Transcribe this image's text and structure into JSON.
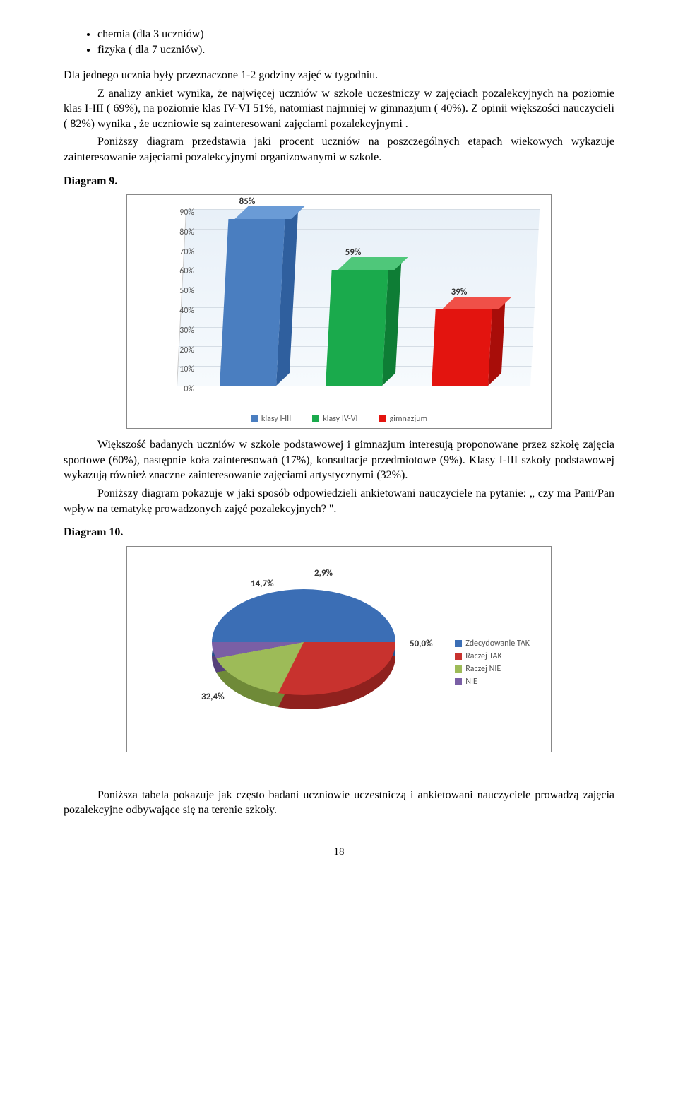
{
  "bullets": {
    "item1": "chemia (dla 3 uczniów)",
    "item2": "fizyka ( dla 7 uczniów)."
  },
  "para1": "Dla jednego ucznia były przeznaczone 1-2 godziny zajęć w tygodniu.",
  "para2": "Z analizy ankiet wynika, że najwięcej uczniów w szkole uczestniczy w zajęciach pozalekcyjnych na poziomie klas I-III ( 69%), na poziomie klas IV-VI  51%, natomiast najmniej w gimnazjum ( 40%). Z opinii większości nauczycieli ( 82%) wynika , że uczniowie są zainteresowani zajęciami pozalekcyjnymi .",
  "para3": "Poniższy diagram przedstawia jaki procent uczniów na poszczególnych etapach wiekowych wykazuje zainteresowanie zajęciami pozalekcyjnymi organizowanymi w szkole.",
  "diagram9_title": "Diagram 9.",
  "bar_chart": {
    "ylim_max": 90,
    "ytick_step": 10,
    "yticks": [
      "90%",
      "80%",
      "70%",
      "60%",
      "50%",
      "40%",
      "30%",
      "20%",
      "10%",
      "0%"
    ],
    "background_top": "#e8f0f8",
    "grid_color": "#d5dde5",
    "bars": [
      {
        "label": "klasy I-III",
        "value": 85,
        "text": "85%",
        "front": "#4a7ec0",
        "top": "#6a9bd6",
        "side": "#2f5f9e"
      },
      {
        "label": "klasy IV-VI",
        "value": 59,
        "text": "59%",
        "front": "#1aaa4c",
        "top": "#4fc77a",
        "side": "#0e7d35"
      },
      {
        "label": "gimnazjum",
        "value": 39,
        "text": "39%",
        "front": "#e3140f",
        "top": "#f05048",
        "side": "#a80d09"
      }
    ]
  },
  "para4": "Większość badanych uczniów w szkole podstawowej i gimnazjum interesują proponowane przez szkołę zajęcia sportowe (60%), następnie koła zainteresowań (17%), konsultacje przedmiotowe (9%). Klasy I-III szkoły podstawowej wykazują również znaczne zainteresowanie zajęciami artystycznymi (32%).",
  "para5": "Poniższy diagram pokazuje w jaki sposób odpowiedzieli ankietowani nauczyciele na pytanie: „ czy ma Pani/Pan wpływ na tematykę prowadzonych zajęć pozalekcyjnych? \".",
  "diagram10_title": "Diagram 10.",
  "pie_chart": {
    "slices": [
      {
        "label": "Zdecydowanie TAK",
        "value": 50.0,
        "text": "50,0%",
        "color": "#3b6eb5",
        "dark": "#27508c"
      },
      {
        "label": "Raczej TAK",
        "value": 32.4,
        "text": "32,4%",
        "color": "#c8322e",
        "dark": "#8f211e"
      },
      {
        "label": "Raczej NIE",
        "value": 14.7,
        "text": "14,7%",
        "color": "#9dbb58",
        "dark": "#6f8a38"
      },
      {
        "label": "NIE",
        "value": 2.9,
        "text": "2,9%",
        "color": "#7a5fa5",
        "dark": "#55407a"
      }
    ]
  },
  "para6": "Poniższa tabela pokazuje jak często badani uczniowie uczestniczą i ankietowani nauczyciele prowadzą zajęcia pozalekcyjne odbywające się na terenie szkoły.",
  "page_number": "18"
}
